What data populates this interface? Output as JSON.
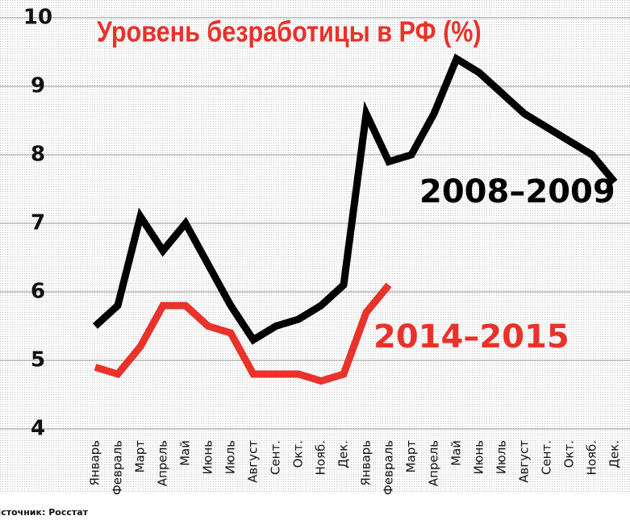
{
  "chart_data": {
    "type": "line",
    "title": "Уровень безработицы в РФ (%)",
    "source": "Источник: Росстат",
    "categories": [
      "Январь",
      "Февраль",
      "Март",
      "Апрель",
      "Май",
      "Июнь",
      "Июль",
      "Август",
      "Сент.",
      "Окт.",
      "Нояб.",
      "Дек.",
      "Январь",
      "Февраль",
      "Март",
      "Апрель",
      "Май",
      "Июнь",
      "Июль",
      "Август",
      "Сент.",
      "Окт.",
      "Нояб.",
      "Дек."
    ],
    "series": [
      {
        "name": "2008–2009",
        "color": "#000000",
        "values": [
          5.5,
          5.8,
          7.1,
          6.6,
          7.0,
          6.4,
          5.8,
          5.3,
          5.5,
          5.6,
          5.8,
          6.1,
          8.6,
          7.9,
          8.0,
          8.6,
          9.4,
          9.2,
          8.9,
          8.6,
          8.4,
          8.2,
          8.0,
          7.6
        ]
      },
      {
        "name": "2014–2015",
        "color": "#e8322a",
        "values": [
          4.9,
          4.8,
          5.2,
          5.8,
          5.8,
          5.5,
          5.4,
          4.8,
          4.8,
          4.8,
          4.7,
          4.8,
          5.7,
          6.1,
          null,
          null,
          null,
          null,
          null,
          null,
          null,
          null,
          null,
          null
        ]
      }
    ],
    "ylim": [
      4,
      10
    ],
    "yticks": [
      4,
      5,
      6,
      7,
      8,
      9,
      10
    ],
    "grid": true
  }
}
